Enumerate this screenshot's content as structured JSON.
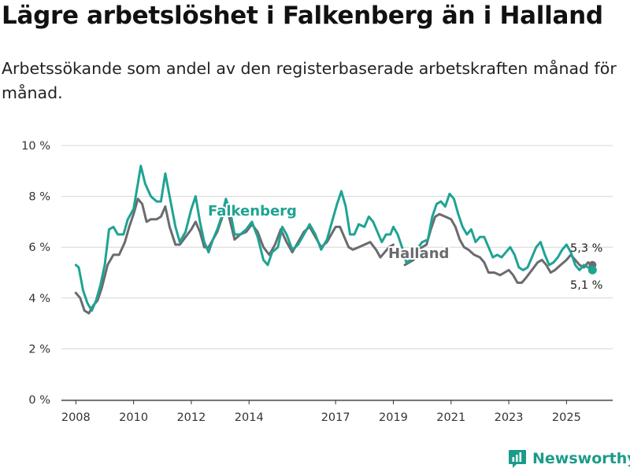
{
  "title": "Lägre arbetslöshet i Falkenberg än i Halland",
  "subtitle": "Arbetssökande som andel av den registerbaserade arbetskraften månad för månad.",
  "brand": {
    "name": "Newsworthy",
    "icon": "bar-chart-logo-icon"
  },
  "colors": {
    "falkenberg": "#1fa393",
    "halland": "#6b6b6f",
    "grid": "#d6d6d6",
    "axis": "#333333"
  },
  "chart_data": {
    "type": "line",
    "xlabel": "",
    "ylabel": "",
    "xlim": [
      2007.5,
      2026.6
    ],
    "ylim": [
      0,
      10
    ],
    "y_ticks": [
      {
        "value": 0,
        "label": "0 %"
      },
      {
        "value": 2,
        "label": "2 %"
      },
      {
        "value": 4,
        "label": "4 %"
      },
      {
        "value": 6,
        "label": "6 %"
      },
      {
        "value": 8,
        "label": "8 %"
      },
      {
        "value": 10,
        "label": "10 %"
      }
    ],
    "x_ticks": [
      {
        "value": 2008,
        "label": "2008"
      },
      {
        "value": 2010,
        "label": "2010"
      },
      {
        "value": 2012,
        "label": "2012"
      },
      {
        "value": 2014,
        "label": "2014"
      },
      {
        "value": 2017,
        "label": "2017"
      },
      {
        "value": 2019,
        "label": "2019"
      },
      {
        "value": 2021,
        "label": "2021"
      },
      {
        "value": 2023,
        "label": "2023"
      },
      {
        "value": 2025,
        "label": "2025"
      }
    ],
    "series": [
      {
        "name": "Halland",
        "label": "Halland",
        "color_key": "halland",
        "end_label": "5,3 %",
        "points": [
          [
            2008.0,
            4.2
          ],
          [
            2008.15,
            4.0
          ],
          [
            2008.3,
            3.5
          ],
          [
            2008.45,
            3.4
          ],
          [
            2008.6,
            3.7
          ],
          [
            2008.75,
            3.9
          ],
          [
            2008.9,
            4.4
          ],
          [
            2009.1,
            5.3
          ],
          [
            2009.3,
            5.7
          ],
          [
            2009.5,
            5.7
          ],
          [
            2009.7,
            6.2
          ],
          [
            2009.85,
            6.8
          ],
          [
            2010.0,
            7.3
          ],
          [
            2010.15,
            7.9
          ],
          [
            2010.3,
            7.7
          ],
          [
            2010.45,
            7.0
          ],
          [
            2010.6,
            7.1
          ],
          [
            2010.8,
            7.1
          ],
          [
            2010.95,
            7.2
          ],
          [
            2011.1,
            7.6
          ],
          [
            2011.25,
            6.8
          ],
          [
            2011.45,
            6.1
          ],
          [
            2011.6,
            6.1
          ],
          [
            2011.8,
            6.4
          ],
          [
            2012.0,
            6.7
          ],
          [
            2012.15,
            7.0
          ],
          [
            2012.3,
            6.6
          ],
          [
            2012.45,
            6.0
          ],
          [
            2012.6,
            6.0
          ],
          [
            2012.75,
            6.3
          ],
          [
            2012.9,
            6.6
          ],
          [
            2013.05,
            7.1
          ],
          [
            2013.2,
            7.7
          ],
          [
            2013.35,
            7.0
          ],
          [
            2013.5,
            6.3
          ],
          [
            2013.7,
            6.5
          ],
          [
            2013.9,
            6.6
          ],
          [
            2014.1,
            6.9
          ],
          [
            2014.3,
            6.6
          ],
          [
            2014.5,
            6.0
          ],
          [
            2014.7,
            5.7
          ],
          [
            2014.9,
            6.1
          ],
          [
            2015.1,
            6.7
          ],
          [
            2015.3,
            6.2
          ],
          [
            2015.5,
            5.8
          ],
          [
            2015.7,
            6.2
          ],
          [
            2015.9,
            6.6
          ],
          [
            2016.1,
            6.8
          ],
          [
            2016.3,
            6.4
          ],
          [
            2016.5,
            6.0
          ],
          [
            2016.7,
            6.2
          ],
          [
            2016.9,
            6.6
          ],
          [
            2017.0,
            6.8
          ],
          [
            2017.15,
            6.8
          ],
          [
            2017.3,
            6.4
          ],
          [
            2017.45,
            6.0
          ],
          [
            2017.6,
            5.9
          ],
          [
            2017.8,
            6.0
          ],
          [
            2018.0,
            6.1
          ],
          [
            2018.2,
            6.2
          ],
          [
            2018.4,
            5.9
          ],
          [
            2018.55,
            5.6
          ],
          [
            2018.7,
            5.8
          ],
          [
            2018.85,
            6.0
          ],
          [
            2019.0,
            6.1
          ]
        ],
        "points2": [
          [
            2019.4,
            5.3
          ],
          [
            2019.55,
            5.4
          ],
          [
            2019.7,
            5.5
          ],
          [
            2019.85,
            5.9
          ],
          [
            2020.0,
            6.0
          ],
          [
            2020.15,
            6.1
          ],
          [
            2020.3,
            6.7
          ],
          [
            2020.45,
            7.2
          ],
          [
            2020.6,
            7.3
          ],
          [
            2020.8,
            7.2
          ],
          [
            2021.0,
            7.1
          ],
          [
            2021.15,
            6.8
          ],
          [
            2021.3,
            6.3
          ],
          [
            2021.45,
            6.0
          ],
          [
            2021.6,
            5.9
          ],
          [
            2021.8,
            5.7
          ],
          [
            2022.0,
            5.6
          ],
          [
            2022.15,
            5.4
          ],
          [
            2022.3,
            5.0
          ],
          [
            2022.5,
            5.0
          ],
          [
            2022.7,
            4.9
          ],
          [
            2022.85,
            5.0
          ],
          [
            2023.0,
            5.1
          ],
          [
            2023.15,
            4.9
          ],
          [
            2023.3,
            4.6
          ],
          [
            2023.45,
            4.6
          ],
          [
            2023.6,
            4.8
          ],
          [
            2023.8,
            5.1
          ],
          [
            2024.0,
            5.4
          ],
          [
            2024.15,
            5.5
          ],
          [
            2024.3,
            5.3
          ],
          [
            2024.45,
            5.0
          ],
          [
            2024.6,
            5.1
          ],
          [
            2024.8,
            5.3
          ],
          [
            2025.0,
            5.5
          ],
          [
            2025.15,
            5.7
          ],
          [
            2025.3,
            5.5
          ],
          [
            2025.45,
            5.3
          ],
          [
            2025.6,
            5.2
          ],
          [
            2025.75,
            5.4
          ],
          [
            2025.9,
            5.3
          ]
        ]
      },
      {
        "name": "Falkenberg",
        "label": "Falkenberg",
        "color_key": "falkenberg",
        "end_label": "5,1 %",
        "points": [
          [
            2008.0,
            5.3
          ],
          [
            2008.1,
            5.2
          ],
          [
            2008.25,
            4.3
          ],
          [
            2008.4,
            3.8
          ],
          [
            2008.55,
            3.5
          ],
          [
            2008.7,
            3.9
          ],
          [
            2008.85,
            4.5
          ],
          [
            2009.0,
            5.3
          ],
          [
            2009.15,
            6.7
          ],
          [
            2009.3,
            6.8
          ],
          [
            2009.45,
            6.5
          ],
          [
            2009.65,
            6.5
          ],
          [
            2009.8,
            7.1
          ],
          [
            2010.0,
            7.5
          ],
          [
            2010.15,
            8.5
          ],
          [
            2010.25,
            9.2
          ],
          [
            2010.4,
            8.5
          ],
          [
            2010.6,
            8.0
          ],
          [
            2010.8,
            7.8
          ],
          [
            2010.95,
            7.8
          ],
          [
            2011.1,
            8.9
          ],
          [
            2011.25,
            8.0
          ],
          [
            2011.45,
            6.8
          ],
          [
            2011.6,
            6.2
          ],
          [
            2011.8,
            6.6
          ],
          [
            2012.0,
            7.5
          ],
          [
            2012.15,
            8.0
          ],
          [
            2012.3,
            7.0
          ],
          [
            2012.45,
            6.2
          ],
          [
            2012.6,
            5.8
          ],
          [
            2012.75,
            6.3
          ],
          [
            2012.9,
            6.7
          ],
          [
            2013.05,
            7.2
          ],
          [
            2013.2,
            7.9
          ],
          [
            2013.35,
            7.4
          ],
          [
            2013.5,
            6.5
          ],
          [
            2013.7,
            6.5
          ],
          [
            2013.9,
            6.7
          ],
          [
            2014.1,
            7.0
          ],
          [
            2014.3,
            6.4
          ],
          [
            2014.5,
            5.5
          ],
          [
            2014.65,
            5.3
          ],
          [
            2014.8,
            5.8
          ],
          [
            2015.0,
            6.0
          ],
          [
            2015.15,
            6.8
          ],
          [
            2015.3,
            6.5
          ],
          [
            2015.5,
            5.9
          ],
          [
            2015.7,
            6.1
          ],
          [
            2015.9,
            6.5
          ],
          [
            2016.1,
            6.9
          ],
          [
            2016.3,
            6.5
          ],
          [
            2016.5,
            5.9
          ],
          [
            2016.7,
            6.3
          ],
          [
            2016.9,
            7.1
          ],
          [
            2017.05,
            7.7
          ],
          [
            2017.2,
            8.2
          ],
          [
            2017.35,
            7.6
          ],
          [
            2017.5,
            6.5
          ],
          [
            2017.65,
            6.5
          ],
          [
            2017.8,
            6.9
          ],
          [
            2018.0,
            6.8
          ],
          [
            2018.15,
            7.2
          ],
          [
            2018.3,
            7.0
          ],
          [
            2018.45,
            6.6
          ],
          [
            2018.6,
            6.2
          ],
          [
            2018.75,
            6.5
          ],
          [
            2018.9,
            6.5
          ],
          [
            2019.0,
            6.8
          ],
          [
            2019.15,
            6.5
          ],
          [
            2019.3,
            6.0
          ],
          [
            2019.45,
            5.4
          ],
          [
            2019.6,
            5.5
          ],
          [
            2019.8,
            5.9
          ],
          [
            2020.0,
            6.2
          ],
          [
            2020.2,
            6.3
          ],
          [
            2020.35,
            7.2
          ],
          [
            2020.5,
            7.7
          ],
          [
            2020.65,
            7.8
          ],
          [
            2020.8,
            7.6
          ],
          [
            2020.95,
            8.1
          ],
          [
            2021.1,
            7.9
          ],
          [
            2021.25,
            7.3
          ],
          [
            2021.4,
            6.8
          ],
          [
            2021.55,
            6.5
          ],
          [
            2021.7,
            6.7
          ],
          [
            2021.85,
            6.2
          ],
          [
            2022.0,
            6.4
          ],
          [
            2022.15,
            6.4
          ],
          [
            2022.3,
            6.0
          ],
          [
            2022.45,
            5.6
          ],
          [
            2022.6,
            5.7
          ],
          [
            2022.75,
            5.6
          ],
          [
            2022.9,
            5.8
          ],
          [
            2023.05,
            6.0
          ],
          [
            2023.2,
            5.7
          ],
          [
            2023.35,
            5.2
          ],
          [
            2023.5,
            5.1
          ],
          [
            2023.65,
            5.2
          ],
          [
            2023.8,
            5.6
          ],
          [
            2023.95,
            6.0
          ],
          [
            2024.1,
            6.2
          ],
          [
            2024.25,
            5.7
          ],
          [
            2024.4,
            5.3
          ],
          [
            2024.55,
            5.4
          ],
          [
            2024.7,
            5.6
          ],
          [
            2024.85,
            5.9
          ],
          [
            2025.0,
            6.1
          ],
          [
            2025.15,
            5.8
          ],
          [
            2025.3,
            5.3
          ],
          [
            2025.45,
            5.1
          ],
          [
            2025.6,
            5.3
          ],
          [
            2025.75,
            5.2
          ],
          [
            2025.9,
            5.1
          ]
        ]
      }
    ]
  }
}
